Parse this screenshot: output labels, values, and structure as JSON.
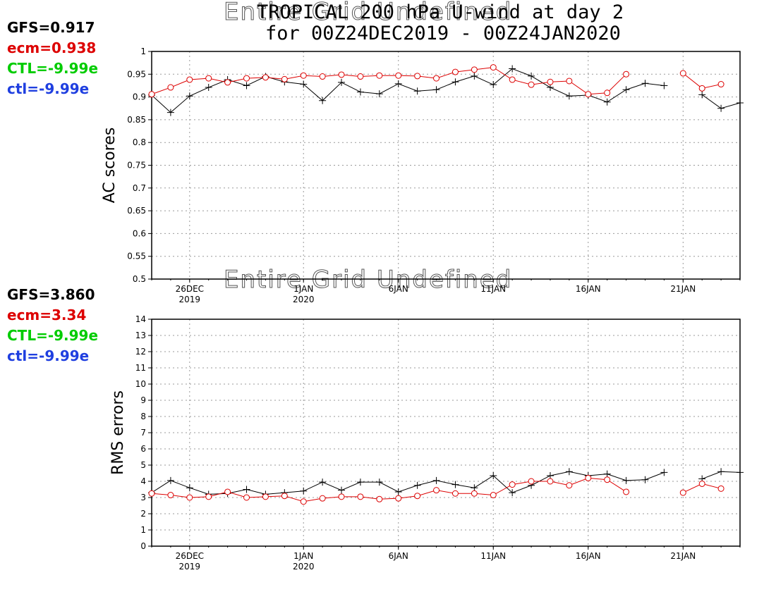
{
  "title": {
    "line1": "TROPICAL 200 hPa U-wind at day 2",
    "line2": "for 00Z24DEC2019 - 00Z24JAN2020",
    "overlay": "Entire Grid Undefined"
  },
  "x_axis": {
    "ticks": [
      {
        "day": 2,
        "label": "26DEC",
        "sub": "2019"
      },
      {
        "day": 8,
        "label": "1JAN",
        "sub": "2020"
      },
      {
        "day": 13,
        "label": "6JAN",
        "sub": ""
      },
      {
        "day": 18,
        "label": "11JAN",
        "sub": ""
      },
      {
        "day": 23,
        "label": "16JAN",
        "sub": ""
      },
      {
        "day": 28,
        "label": "21JAN",
        "sub": ""
      }
    ]
  },
  "colors": {
    "gfs": "#000000",
    "ecm": "#dd0000",
    "ctl_upper": "#00cc00",
    "ctl_lower": "#1f3fe0"
  },
  "panels": [
    {
      "ylabel": "AC scores",
      "scores": [
        "GFS=0.917",
        "ecm=0.938",
        "CTL=-9.99e",
        "ctl=-9.99e"
      ],
      "ylim": [
        0.5,
        1.0
      ],
      "yticks": [
        "0.5",
        "0.55",
        "0.6",
        "0.65",
        "0.7",
        "0.75",
        "0.8",
        "0.85",
        "0.9",
        "0.95",
        "1"
      ]
    },
    {
      "ylabel": "RMS errors",
      "scores": [
        "GFS=3.860",
        "ecm=3.34",
        "CTL=-9.99e",
        "ctl=-9.99e"
      ],
      "ylim": [
        0,
        14
      ],
      "yticks": [
        "0",
        "1",
        "2",
        "3",
        "4",
        "5",
        "6",
        "7",
        "8",
        "9",
        "10",
        "11",
        "12",
        "13",
        "14"
      ]
    }
  ],
  "chart_data": [
    {
      "type": "line",
      "title": "TROPICAL 200 hPa U-wind at day 2",
      "subtitle": "for 00Z24DEC2019 - 00Z24JAN2020",
      "ylabel": "AC scores",
      "ylim": [
        0.5,
        1.0
      ],
      "xlim": [
        "24DEC2019",
        "24JAN2020"
      ],
      "x": [
        "24DEC",
        "25DEC",
        "26DEC",
        "27DEC",
        "28DEC",
        "29DEC",
        "30DEC",
        "31DEC",
        "1JAN",
        "2JAN",
        "3JAN",
        "4JAN",
        "5JAN",
        "6JAN",
        "7JAN",
        "8JAN",
        "9JAN",
        "10JAN",
        "11JAN",
        "12JAN",
        "13JAN",
        "14JAN",
        "15JAN",
        "16JAN",
        "17JAN",
        "18JAN",
        "19JAN",
        "20JAN",
        "21JAN",
        "22JAN",
        "23JAN",
        "24JAN"
      ],
      "series": [
        {
          "name": "GFS",
          "marker": "plus",
          "values": [
            0.904,
            0.866,
            0.902,
            0.921,
            0.938,
            0.925,
            0.945,
            0.933,
            0.928,
            0.892,
            0.932,
            0.911,
            0.907,
            0.929,
            0.913,
            0.916,
            0.933,
            0.946,
            0.927,
            0.962,
            0.946,
            0.921,
            0.902,
            0.904,
            0.889,
            0.916,
            0.93,
            0.925,
            null,
            0.905,
            0.875,
            0.887
          ]
        },
        {
          "name": "ecm",
          "marker": "circle",
          "values": [
            0.906,
            0.921,
            0.938,
            0.941,
            0.932,
            0.941,
            0.943,
            0.939,
            0.947,
            0.945,
            0.949,
            0.945,
            0.947,
            0.947,
            0.946,
            0.941,
            0.955,
            0.96,
            0.965,
            0.938,
            0.927,
            0.933,
            0.935,
            0.906,
            0.909,
            0.95,
            null,
            null,
            0.952,
            0.919,
            0.928,
            null
          ]
        }
      ],
      "grid": true
    },
    {
      "type": "line",
      "ylabel": "RMS errors",
      "ylim": [
        0,
        14
      ],
      "xlim": [
        "24DEC2019",
        "24JAN2020"
      ],
      "x": [
        "24DEC",
        "25DEC",
        "26DEC",
        "27DEC",
        "28DEC",
        "29DEC",
        "30DEC",
        "31DEC",
        "1JAN",
        "2JAN",
        "3JAN",
        "4JAN",
        "5JAN",
        "6JAN",
        "7JAN",
        "8JAN",
        "9JAN",
        "10JAN",
        "11JAN",
        "12JAN",
        "13JAN",
        "14JAN",
        "15JAN",
        "16JAN",
        "17JAN",
        "18JAN",
        "19JAN",
        "20JAN",
        "21JAN",
        "22JAN",
        "23JAN",
        "24JAN"
      ],
      "series": [
        {
          "name": "GFS",
          "marker": "plus",
          "values": [
            3.3,
            4.05,
            3.6,
            3.2,
            3.25,
            3.5,
            3.2,
            3.3,
            3.4,
            3.95,
            3.45,
            3.95,
            3.95,
            3.35,
            3.75,
            4.05,
            3.8,
            3.6,
            4.35,
            3.3,
            3.75,
            4.35,
            4.6,
            4.35,
            4.45,
            4.05,
            4.1,
            4.55,
            null,
            4.15,
            4.6,
            4.55
          ]
        },
        {
          "name": "ecm",
          "marker": "circle",
          "values": [
            3.25,
            3.15,
            3.0,
            3.05,
            3.35,
            3.0,
            3.05,
            3.1,
            2.75,
            2.95,
            3.05,
            3.05,
            2.9,
            2.95,
            3.1,
            3.45,
            3.25,
            3.25,
            3.15,
            3.8,
            4.0,
            4.0,
            3.75,
            4.2,
            4.1,
            3.35,
            null,
            null,
            3.3,
            3.85,
            3.55,
            null
          ]
        }
      ],
      "grid": true
    }
  ]
}
